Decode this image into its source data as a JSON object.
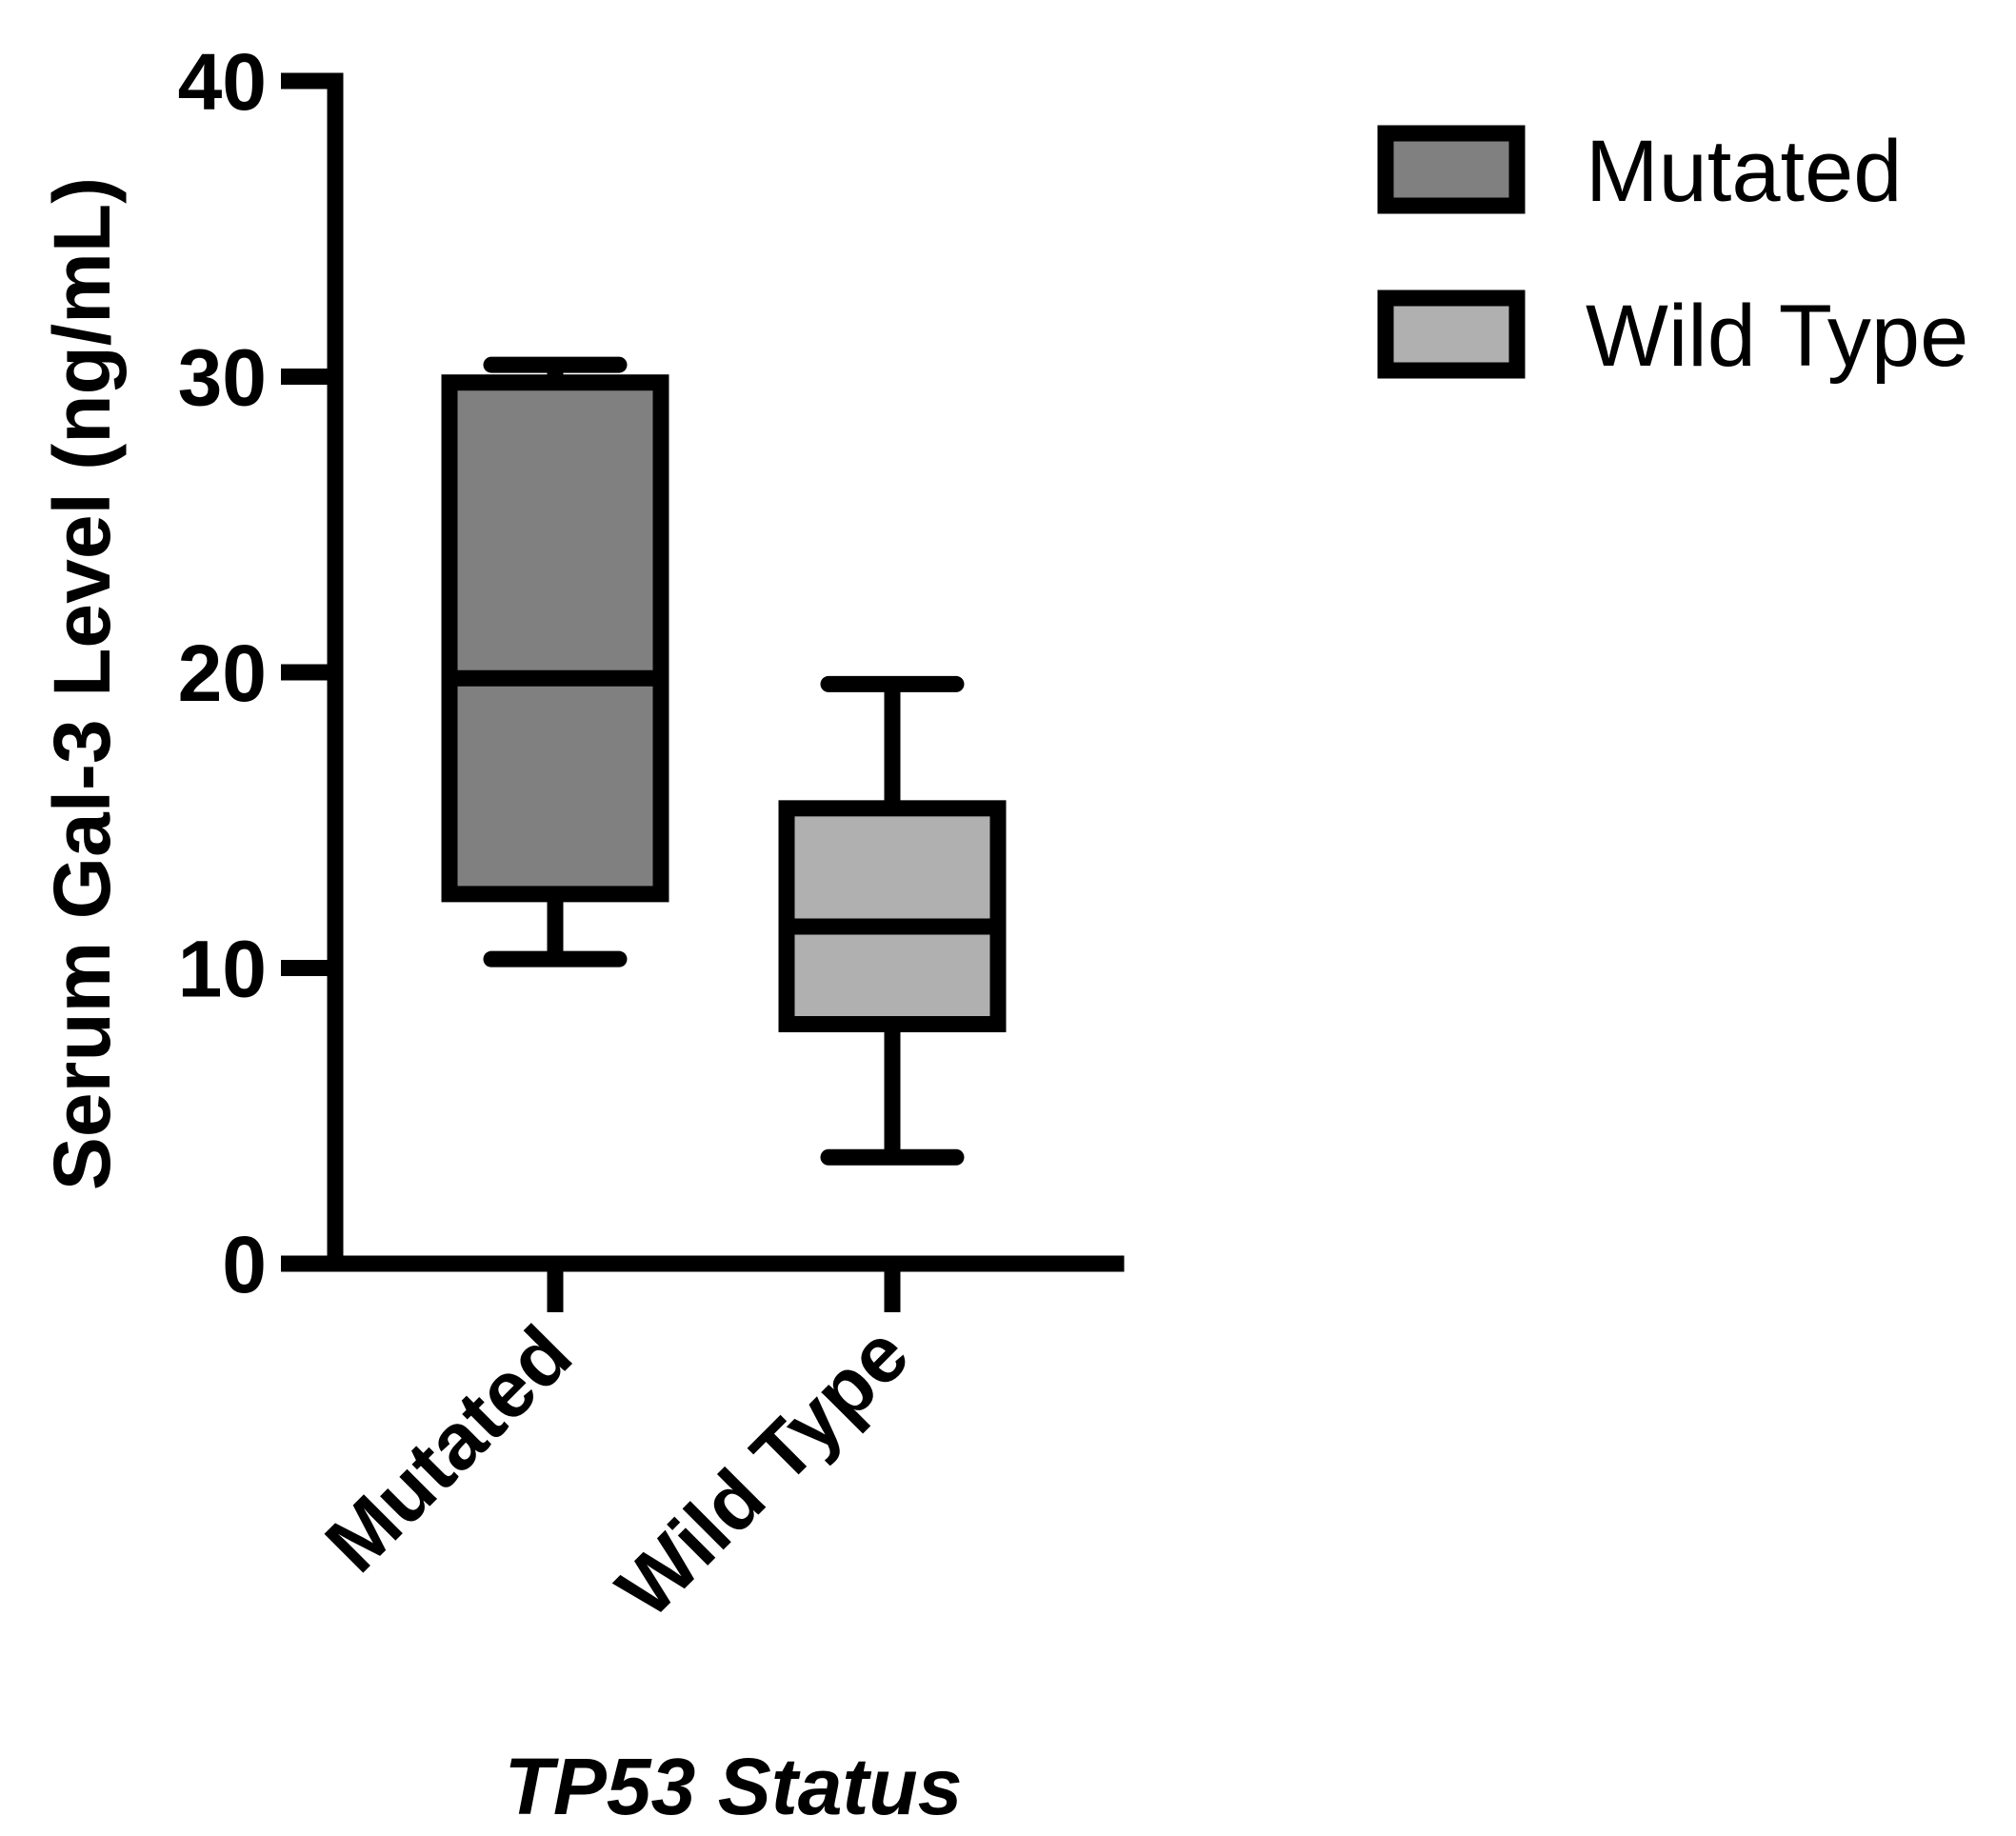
{
  "chart_data": {
    "type": "box",
    "ylabel": "Serum Gal-3 Level (ng/mL)",
    "xlabel": "TP53 Status",
    "ylim": [
      0,
      40
    ],
    "yticks": [
      0,
      10,
      20,
      30,
      40
    ],
    "categories": [
      "Mutated",
      "Wild Type"
    ],
    "series": [
      {
        "name": "Mutated",
        "color": "#808080",
        "min": 10.3,
        "q1": 12.5,
        "median": 19.8,
        "q3": 29.8,
        "max": 30.4
      },
      {
        "name": "Wild Type",
        "color": "#b0b0b0",
        "min": 3.6,
        "q1": 8.1,
        "median": 11.4,
        "q3": 15.4,
        "max": 19.6
      }
    ],
    "legend": {
      "position": "top-right",
      "entries": [
        "Mutated",
        "Wild Type"
      ]
    }
  }
}
